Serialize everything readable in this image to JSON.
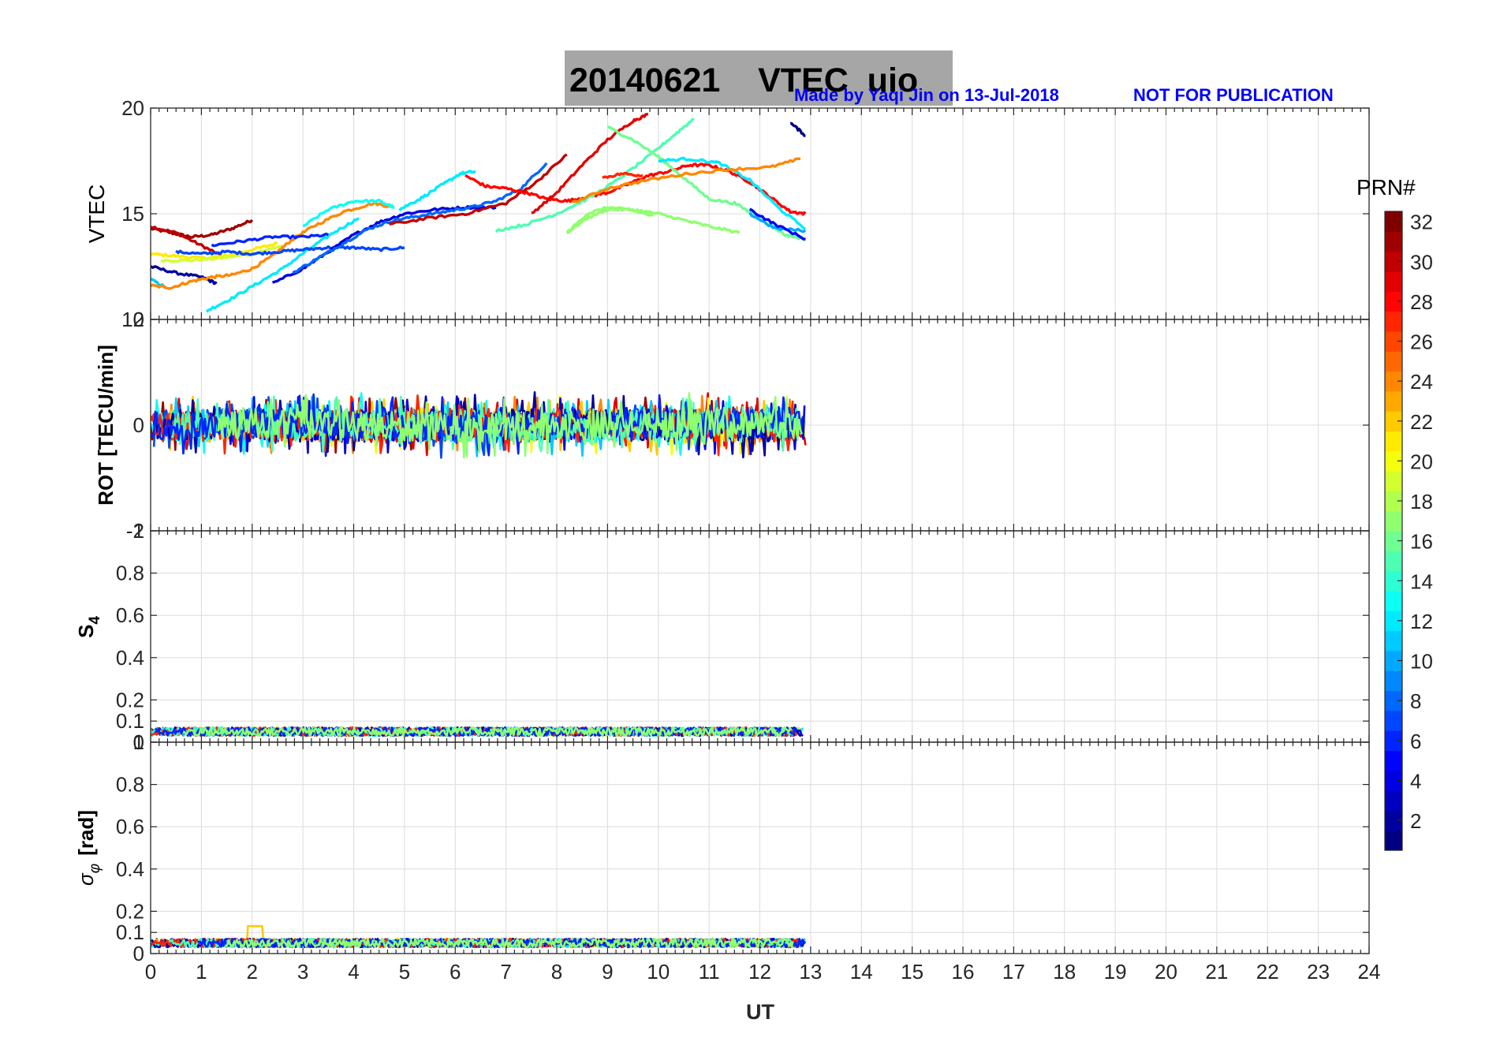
{
  "figure": {
    "title": "20140621    VTEC  uio",
    "credit": "Made by Yaqi Jin on 13-Jul-2018",
    "disclaimer": "NOT FOR PUBLICATION",
    "colors": {
      "title_box": "#a6a6a6",
      "credit": "#0000ff"
    }
  },
  "colorbar": {
    "title": "PRN#",
    "range": [
      1,
      32
    ],
    "colormap": "jet",
    "tick_labels": [
      "2",
      "4",
      "6",
      "8",
      "10",
      "12",
      "14",
      "16",
      "18",
      "20",
      "22",
      "24",
      "26",
      "28",
      "30",
      "32"
    ]
  },
  "chart_data": [
    {
      "type": "line",
      "panel": "VTEC",
      "ylabel": "VTEC",
      "xlim": [
        0,
        24
      ],
      "ylim": [
        10,
        20
      ],
      "yticks": [
        "10",
        "15",
        "20"
      ],
      "grid": true,
      "series": [
        {
          "prn": 31,
          "x": [
            0,
            0.4,
            0.8,
            1.2,
            1.6,
            2.0
          ],
          "y": [
            14.3,
            14.1,
            13.9,
            14.0,
            14.3,
            14.7
          ]
        },
        {
          "prn": 30,
          "x": [
            0,
            0.5,
            1.0,
            1.4
          ],
          "y": [
            14.4,
            14.1,
            13.5,
            13.0
          ]
        },
        {
          "prn": 21,
          "x": [
            0,
            0.5,
            1.0,
            1.5,
            2.0,
            2.5
          ],
          "y": [
            13.1,
            13.0,
            12.9,
            13.0,
            13.3,
            13.6
          ]
        },
        {
          "prn": 19,
          "x": [
            0.2,
            0.8,
            1.4,
            2.0,
            2.6
          ],
          "y": [
            12.8,
            12.8,
            12.9,
            13.1,
            13.5
          ]
        },
        {
          "prn": 2,
          "x": [
            0,
            0.5,
            1.0,
            1.3
          ],
          "y": [
            12.5,
            12.2,
            12.0,
            11.7
          ]
        },
        {
          "prn": 11,
          "x": [
            0,
            0.3
          ],
          "y": [
            11.9,
            11.5
          ]
        },
        {
          "prn": 24,
          "x": [
            0,
            0.4,
            0.8,
            1.2,
            1.6,
            2.0,
            2.4,
            2.8,
            3.2,
            3.8,
            4.4,
            4.8
          ],
          "y": [
            11.6,
            11.5,
            11.8,
            12.0,
            12.1,
            12.4,
            13.0,
            13.8,
            14.4,
            15.1,
            15.5,
            15.3
          ]
        },
        {
          "prn": 12,
          "x": [
            1.1,
            1.6,
            2.1,
            2.6,
            3.1,
            3.6,
            4.1
          ],
          "y": [
            10.4,
            11.0,
            11.7,
            12.4,
            13.3,
            14.1,
            14.8
          ]
        },
        {
          "prn": 7,
          "x": [
            0.5,
            1.0,
            1.5,
            2.0,
            2.5,
            3.0,
            3.5,
            4.0,
            4.5,
            5.0
          ],
          "y": [
            13.2,
            13.1,
            13.2,
            13.1,
            13.2,
            13.3,
            13.4,
            13.4,
            13.3,
            13.4
          ]
        },
        {
          "prn": 6,
          "x": [
            1.2,
            1.8,
            2.4,
            3.0,
            3.5
          ],
          "y": [
            13.5,
            13.7,
            13.9,
            13.9,
            14.0
          ]
        },
        {
          "prn": 13,
          "x": [
            3.0,
            3.5,
            4.0,
            4.5,
            4.8
          ],
          "y": [
            14.4,
            15.2,
            15.6,
            15.6,
            15.3
          ]
        },
        {
          "prn": 4,
          "x": [
            2.4,
            3.0,
            3.5,
            4.0,
            4.5,
            5.0,
            5.6,
            6.2,
            6.8
          ],
          "y": [
            11.7,
            12.4,
            13.2,
            14.0,
            14.6,
            15.0,
            15.2,
            15.3,
            15.3
          ]
        },
        {
          "prn": 8,
          "x": [
            2.8,
            3.3,
            3.8,
            4.3,
            4.8,
            5.3,
            5.8,
            6.3,
            6.8,
            7.3,
            7.8
          ],
          "y": [
            12.2,
            12.9,
            13.6,
            14.3,
            14.7,
            14.9,
            15.1,
            15.3,
            15.6,
            16.2,
            17.4
          ]
        },
        {
          "prn": 12,
          "x": [
            4.9,
            5.3,
            5.7,
            6.1,
            6.4
          ],
          "y": [
            15.2,
            15.7,
            16.3,
            16.9,
            17.0
          ]
        },
        {
          "prn": 30,
          "x": [
            4.7,
            5.5,
            6.2,
            7.0,
            7.6,
            8.2
          ],
          "y": [
            14.5,
            14.8,
            15.0,
            15.5,
            16.5,
            17.8
          ]
        },
        {
          "prn": 28,
          "x": [
            6.2,
            6.6,
            7.0,
            7.4,
            7.8,
            8.2,
            8.6,
            9.0,
            9.4,
            9.8,
            10.2,
            10.6,
            11.0,
            11.4,
            11.8,
            12.2,
            12.6,
            12.9
          ],
          "y": [
            16.8,
            16.3,
            16.2,
            16.0,
            15.7,
            15.6,
            15.8,
            16.0,
            16.4,
            16.8,
            17.0,
            17.3,
            17.3,
            17.0,
            16.5,
            15.8,
            15.1,
            15.0
          ]
        },
        {
          "prn": 29,
          "x": [
            7.5,
            8.0,
            8.5,
            9.0,
            9.5,
            9.8
          ],
          "y": [
            15.0,
            16.0,
            17.3,
            18.5,
            19.4,
            19.7
          ]
        },
        {
          "prn": 15,
          "x": [
            6.8,
            7.4,
            8.0,
            8.6,
            9.2,
            9.8,
            10.3,
            10.7
          ],
          "y": [
            14.2,
            14.5,
            15.0,
            15.7,
            16.6,
            17.7,
            18.7,
            19.5
          ]
        },
        {
          "prn": 17,
          "x": [
            8.2,
            8.6,
            9.0,
            9.5,
            10.0,
            10.5,
            11.0,
            11.6
          ],
          "y": [
            14.1,
            14.8,
            15.2,
            15.2,
            15.0,
            14.7,
            14.4,
            14.1
          ]
        },
        {
          "prn": 17,
          "x": [
            8.2,
            8.6,
            9.0,
            9.4,
            9.9
          ],
          "y": [
            14.1,
            15.0,
            15.3,
            15.2,
            14.9
          ]
        },
        {
          "prn": 16,
          "x": [
            9.0,
            9.5,
            10.0,
            10.5,
            11.0,
            11.5,
            12.0,
            12.5,
            12.9
          ],
          "y": [
            19.1,
            18.5,
            17.7,
            16.7,
            15.7,
            15.5,
            14.8,
            14.0,
            13.8
          ]
        },
        {
          "prn": 12,
          "x": [
            10.0,
            10.6,
            11.2,
            11.8,
            12.4,
            12.9
          ],
          "y": [
            17.5,
            17.6,
            17.4,
            16.6,
            15.2,
            14.3
          ]
        },
        {
          "prn": 24,
          "x": [
            8.3,
            9.0,
            9.8,
            10.6,
            11.4,
            12.2,
            12.8
          ],
          "y": [
            15.5,
            16.2,
            16.6,
            16.9,
            17.1,
            17.2,
            17.6
          ]
        },
        {
          "prn": 10,
          "x": [
            11.8,
            12.3,
            12.9
          ],
          "y": [
            15.0,
            14.3,
            14.2
          ]
        },
        {
          "prn": 5,
          "x": [
            11.8,
            12.3,
            12.9
          ],
          "y": [
            15.2,
            14.5,
            13.8
          ]
        },
        {
          "prn": 1,
          "x": [
            12.6,
            12.9
          ],
          "y": [
            19.3,
            18.7
          ]
        },
        {
          "prn": 27,
          "x": [
            8.9,
            9.3,
            9.7
          ],
          "y": [
            16.7,
            16.9,
            16.8
          ]
        }
      ]
    },
    {
      "type": "line",
      "panel": "ROT",
      "ylabel": "ROT [TECU/min]",
      "xlim": [
        0,
        24
      ],
      "ylim": [
        -2,
        2
      ],
      "yticks": [
        "-2",
        "0",
        "2"
      ],
      "grid": true,
      "note": "Dense noise-like traces for each PRN between 0 and ~12.9 UT, mostly within ±0.5 TECU/min",
      "data_range_x": [
        0,
        12.9
      ],
      "typical_amplitude": 0.35
    },
    {
      "type": "line",
      "panel": "S4",
      "ylabel": "S",
      "ylabel_sub": "4",
      "xlim": [
        0,
        24
      ],
      "ylim": [
        0,
        1
      ],
      "yticks": [
        "0",
        "0.1",
        "0.2",
        "0.4",
        "0.6",
        "0.8",
        "1"
      ],
      "grid": true,
      "data_range_x": [
        0,
        12.9
      ],
      "typical_level": 0.05
    },
    {
      "type": "line",
      "panel": "SigmaPhi",
      "ylabel": "σ",
      "ylabel_sub": "φ",
      "ylabel_unit": "[rad]",
      "xlim": [
        0,
        24
      ],
      "ylim": [
        0,
        1
      ],
      "yticks": [
        "0",
        "0.1",
        "0.2",
        "0.4",
        "0.6",
        "0.8",
        "1"
      ],
      "xlabel": "UT",
      "xticks": [
        "0",
        "1",
        "2",
        "3",
        "4",
        "5",
        "6",
        "7",
        "8",
        "9",
        "10",
        "11",
        "12",
        "13",
        "14",
        "15",
        "16",
        "17",
        "18",
        "19",
        "20",
        "21",
        "22",
        "23",
        "24"
      ],
      "grid": true,
      "data_range_x": [
        0,
        12.9
      ],
      "typical_level": 0.05
    }
  ]
}
